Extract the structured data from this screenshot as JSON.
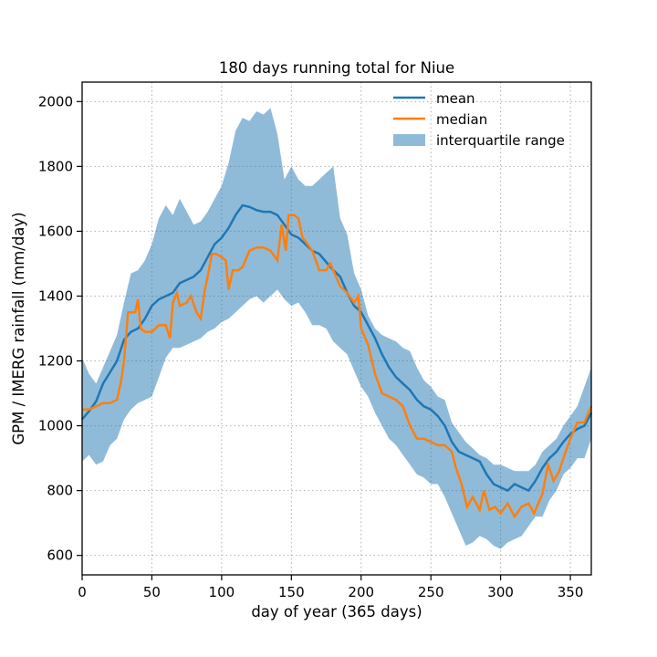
{
  "chart_data": {
    "type": "line",
    "title": "180 days running total for Niue",
    "xlabel": "day of year (365 days)",
    "ylabel": "GPM / IMERG rainfall (mm/day)",
    "xlim": [
      0,
      365
    ],
    "ylim": [
      540,
      2060
    ],
    "xticks": [
      0,
      50,
      100,
      150,
      200,
      250,
      300,
      350
    ],
    "yticks": [
      600,
      800,
      1000,
      1200,
      1400,
      1600,
      1800,
      2000
    ],
    "grid": true,
    "legend_position": "top-right",
    "series": [
      {
        "name": "mean",
        "color": "#1f77b4",
        "points": [
          [
            0,
            1020
          ],
          [
            5,
            1045
          ],
          [
            10,
            1075
          ],
          [
            15,
            1130
          ],
          [
            20,
            1165
          ],
          [
            25,
            1200
          ],
          [
            30,
            1265
          ],
          [
            35,
            1290
          ],
          [
            40,
            1300
          ],
          [
            45,
            1330
          ],
          [
            50,
            1370
          ],
          [
            55,
            1390
          ],
          [
            60,
            1400
          ],
          [
            65,
            1410
          ],
          [
            70,
            1440
          ],
          [
            75,
            1450
          ],
          [
            80,
            1460
          ],
          [
            85,
            1480
          ],
          [
            90,
            1520
          ],
          [
            95,
            1560
          ],
          [
            100,
            1580
          ],
          [
            105,
            1610
          ],
          [
            110,
            1650
          ],
          [
            115,
            1680
          ],
          [
            120,
            1675
          ],
          [
            125,
            1665
          ],
          [
            130,
            1660
          ],
          [
            135,
            1660
          ],
          [
            140,
            1650
          ],
          [
            145,
            1620
          ],
          [
            150,
            1590
          ],
          [
            155,
            1580
          ],
          [
            160,
            1560
          ],
          [
            165,
            1540
          ],
          [
            170,
            1530
          ],
          [
            175,
            1505
          ],
          [
            180,
            1480
          ],
          [
            185,
            1460
          ],
          [
            190,
            1410
          ],
          [
            195,
            1370
          ],
          [
            200,
            1350
          ],
          [
            205,
            1310
          ],
          [
            210,
            1270
          ],
          [
            215,
            1220
          ],
          [
            220,
            1180
          ],
          [
            225,
            1150
          ],
          [
            230,
            1130
          ],
          [
            235,
            1110
          ],
          [
            240,
            1080
          ],
          [
            245,
            1060
          ],
          [
            250,
            1050
          ],
          [
            255,
            1030
          ],
          [
            260,
            1000
          ],
          [
            265,
            950
          ],
          [
            270,
            920
          ],
          [
            275,
            910
          ],
          [
            280,
            900
          ],
          [
            285,
            890
          ],
          [
            290,
            850
          ],
          [
            295,
            820
          ],
          [
            300,
            810
          ],
          [
            305,
            800
          ],
          [
            310,
            820
          ],
          [
            315,
            810
          ],
          [
            320,
            800
          ],
          [
            325,
            830
          ],
          [
            330,
            870
          ],
          [
            335,
            900
          ],
          [
            340,
            920
          ],
          [
            345,
            950
          ],
          [
            350,
            975
          ],
          [
            355,
            990
          ],
          [
            360,
            1000
          ],
          [
            365,
            1040
          ]
        ]
      },
      {
        "name": "median",
        "color": "#ff7f0e",
        "points": [
          [
            0,
            1050
          ],
          [
            5,
            1050
          ],
          [
            10,
            1060
          ],
          [
            15,
            1070
          ],
          [
            20,
            1070
          ],
          [
            25,
            1080
          ],
          [
            28,
            1140
          ],
          [
            30,
            1200
          ],
          [
            33,
            1350
          ],
          [
            38,
            1350
          ],
          [
            40,
            1390
          ],
          [
            42,
            1300
          ],
          [
            45,
            1290
          ],
          [
            50,
            1290
          ],
          [
            55,
            1310
          ],
          [
            60,
            1310
          ],
          [
            63,
            1270
          ],
          [
            65,
            1380
          ],
          [
            68,
            1410
          ],
          [
            70,
            1370
          ],
          [
            75,
            1380
          ],
          [
            78,
            1400
          ],
          [
            82,
            1350
          ],
          [
            85,
            1330
          ],
          [
            88,
            1420
          ],
          [
            90,
            1460
          ],
          [
            93,
            1530
          ],
          [
            96,
            1530
          ],
          [
            100,
            1520
          ],
          [
            103,
            1510
          ],
          [
            105,
            1420
          ],
          [
            108,
            1480
          ],
          [
            112,
            1480
          ],
          [
            115,
            1490
          ],
          [
            120,
            1540
          ],
          [
            125,
            1550
          ],
          [
            130,
            1550
          ],
          [
            135,
            1540
          ],
          [
            140,
            1510
          ],
          [
            143,
            1620
          ],
          [
            146,
            1540
          ],
          [
            148,
            1650
          ],
          [
            152,
            1650
          ],
          [
            155,
            1640
          ],
          [
            158,
            1580
          ],
          [
            160,
            1570
          ],
          [
            165,
            1540
          ],
          [
            170,
            1480
          ],
          [
            175,
            1480
          ],
          [
            178,
            1500
          ],
          [
            180,
            1480
          ],
          [
            185,
            1430
          ],
          [
            190,
            1410
          ],
          [
            195,
            1380
          ],
          [
            198,
            1400
          ],
          [
            200,
            1300
          ],
          [
            205,
            1250
          ],
          [
            210,
            1160
          ],
          [
            215,
            1100
          ],
          [
            220,
            1090
          ],
          [
            225,
            1080
          ],
          [
            230,
            1060
          ],
          [
            235,
            1000
          ],
          [
            240,
            960
          ],
          [
            245,
            960
          ],
          [
            250,
            950
          ],
          [
            255,
            940
          ],
          [
            260,
            940
          ],
          [
            265,
            920
          ],
          [
            268,
            870
          ],
          [
            272,
            820
          ],
          [
            276,
            750
          ],
          [
            280,
            780
          ],
          [
            285,
            740
          ],
          [
            288,
            800
          ],
          [
            292,
            740
          ],
          [
            296,
            750
          ],
          [
            300,
            730
          ],
          [
            305,
            760
          ],
          [
            310,
            720
          ],
          [
            315,
            750
          ],
          [
            320,
            760
          ],
          [
            324,
            730
          ],
          [
            327,
            760
          ],
          [
            330,
            790
          ],
          [
            334,
            880
          ],
          [
            338,
            830
          ],
          [
            342,
            860
          ],
          [
            345,
            900
          ],
          [
            350,
            960
          ],
          [
            355,
            1010
          ],
          [
            360,
            1010
          ],
          [
            365,
            1060
          ]
        ]
      }
    ],
    "band": {
      "name": "interquartile range",
      "color": "#1f77b4",
      "upper": [
        [
          0,
          1210
        ],
        [
          5,
          1160
        ],
        [
          10,
          1130
        ],
        [
          15,
          1180
        ],
        [
          20,
          1230
        ],
        [
          25,
          1280
        ],
        [
          30,
          1380
        ],
        [
          35,
          1470
        ],
        [
          40,
          1480
        ],
        [
          45,
          1510
        ],
        [
          50,
          1560
        ],
        [
          55,
          1640
        ],
        [
          60,
          1680
        ],
        [
          65,
          1650
        ],
        [
          70,
          1700
        ],
        [
          75,
          1660
        ],
        [
          80,
          1620
        ],
        [
          85,
          1630
        ],
        [
          90,
          1660
        ],
        [
          95,
          1700
        ],
        [
          100,
          1740
        ],
        [
          105,
          1810
        ],
        [
          110,
          1910
        ],
        [
          115,
          1950
        ],
        [
          120,
          1940
        ],
        [
          125,
          1970
        ],
        [
          130,
          1960
        ],
        [
          135,
          1980
        ],
        [
          140,
          1900
        ],
        [
          145,
          1760
        ],
        [
          150,
          1800
        ],
        [
          155,
          1760
        ],
        [
          160,
          1740
        ],
        [
          165,
          1740
        ],
        [
          170,
          1760
        ],
        [
          175,
          1780
        ],
        [
          180,
          1800
        ],
        [
          185,
          1640
        ],
        [
          190,
          1590
        ],
        [
          195,
          1470
        ],
        [
          200,
          1420
        ],
        [
          205,
          1340
        ],
        [
          210,
          1300
        ],
        [
          215,
          1280
        ],
        [
          220,
          1270
        ],
        [
          225,
          1260
        ],
        [
          230,
          1240
        ],
        [
          235,
          1230
        ],
        [
          240,
          1180
        ],
        [
          245,
          1140
        ],
        [
          250,
          1120
        ],
        [
          255,
          1090
        ],
        [
          260,
          1080
        ],
        [
          265,
          1010
        ],
        [
          270,
          980
        ],
        [
          275,
          950
        ],
        [
          280,
          930
        ],
        [
          285,
          910
        ],
        [
          290,
          900
        ],
        [
          295,
          880
        ],
        [
          300,
          880
        ],
        [
          305,
          870
        ],
        [
          310,
          860
        ],
        [
          315,
          860
        ],
        [
          320,
          860
        ],
        [
          325,
          880
        ],
        [
          330,
          920
        ],
        [
          335,
          940
        ],
        [
          340,
          960
        ],
        [
          345,
          1000
        ],
        [
          350,
          1030
        ],
        [
          355,
          1060
        ],
        [
          360,
          1120
        ],
        [
          365,
          1180
        ]
      ],
      "lower": [
        [
          0,
          890
        ],
        [
          5,
          910
        ],
        [
          10,
          880
        ],
        [
          15,
          890
        ],
        [
          20,
          940
        ],
        [
          25,
          960
        ],
        [
          30,
          1020
        ],
        [
          35,
          1050
        ],
        [
          40,
          1070
        ],
        [
          45,
          1080
        ],
        [
          50,
          1090
        ],
        [
          55,
          1150
        ],
        [
          60,
          1210
        ],
        [
          65,
          1240
        ],
        [
          70,
          1240
        ],
        [
          75,
          1250
        ],
        [
          80,
          1260
        ],
        [
          85,
          1270
        ],
        [
          90,
          1290
        ],
        [
          95,
          1300
        ],
        [
          100,
          1320
        ],
        [
          105,
          1330
        ],
        [
          110,
          1350
        ],
        [
          115,
          1370
        ],
        [
          120,
          1390
        ],
        [
          125,
          1400
        ],
        [
          130,
          1380
        ],
        [
          135,
          1400
        ],
        [
          140,
          1420
        ],
        [
          145,
          1390
        ],
        [
          150,
          1370
        ],
        [
          155,
          1380
        ],
        [
          160,
          1350
        ],
        [
          165,
          1310
        ],
        [
          170,
          1310
        ],
        [
          175,
          1300
        ],
        [
          180,
          1260
        ],
        [
          185,
          1240
        ],
        [
          190,
          1220
        ],
        [
          195,
          1170
        ],
        [
          200,
          1120
        ],
        [
          205,
          1090
        ],
        [
          210,
          1040
        ],
        [
          215,
          1000
        ],
        [
          220,
          960
        ],
        [
          225,
          940
        ],
        [
          230,
          910
        ],
        [
          235,
          880
        ],
        [
          240,
          850
        ],
        [
          245,
          840
        ],
        [
          250,
          820
        ],
        [
          255,
          820
        ],
        [
          260,
          780
        ],
        [
          265,
          730
        ],
        [
          270,
          680
        ],
        [
          275,
          630
        ],
        [
          280,
          640
        ],
        [
          285,
          660
        ],
        [
          290,
          650
        ],
        [
          295,
          630
        ],
        [
          300,
          620
        ],
        [
          305,
          640
        ],
        [
          310,
          650
        ],
        [
          315,
          660
        ],
        [
          320,
          690
        ],
        [
          325,
          720
        ],
        [
          330,
          720
        ],
        [
          335,
          770
        ],
        [
          340,
          800
        ],
        [
          345,
          850
        ],
        [
          350,
          870
        ],
        [
          355,
          900
        ],
        [
          360,
          900
        ],
        [
          365,
          960
        ]
      ]
    }
  }
}
